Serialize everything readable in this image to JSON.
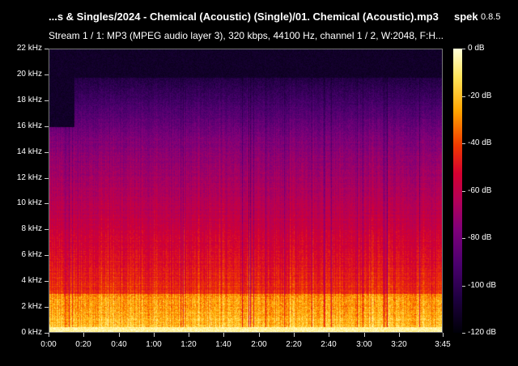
{
  "window": {
    "title": "...s & Singles/2024 - Chemical (Acoustic) (Single)/01. Chemical (Acoustic).mp3",
    "app_name": "spek",
    "app_version": "0.8.5",
    "stream_info": "Stream 1 / 1: MP3 (MPEG audio layer 3), 320 kbps, 44100 Hz, channel 1 / 2, W:2048, F:H..."
  },
  "chart_data": {
    "type": "heatmap",
    "title": "",
    "xlabel": "",
    "ylabel": "",
    "x_ticks": [
      "0:00",
      "0:20",
      "0:40",
      "1:00",
      "1:20",
      "1:40",
      "2:00",
      "2:20",
      "2:40",
      "3:00",
      "3:20",
      "3:45"
    ],
    "x_tick_seconds": [
      0,
      20,
      40,
      60,
      80,
      100,
      120,
      140,
      160,
      180,
      200,
      225
    ],
    "xlim_seconds": [
      0,
      225
    ],
    "y_ticks": [
      "0 kHz",
      "2 kHz",
      "4 kHz",
      "6 kHz",
      "8 kHz",
      "10 kHz",
      "12 kHz",
      "14 kHz",
      "16 kHz",
      "18 kHz",
      "20 kHz",
      "22 kHz"
    ],
    "y_tick_khz": [
      0,
      2,
      4,
      6,
      8,
      10,
      12,
      14,
      16,
      18,
      20,
      22
    ],
    "ylim_khz": [
      0,
      22
    ],
    "colorbar_ticks": [
      "0 dB",
      "-20 dB",
      "-40 dB",
      "-60 dB",
      "-80 dB",
      "-100 dB",
      "-120 dB"
    ],
    "colorbar_db": [
      0,
      -20,
      -40,
      -60,
      -80,
      -100,
      -120
    ],
    "colorbar_range_db": [
      -120,
      0
    ],
    "cutoff_khz": 19.8,
    "early_cutoff_khz": 16,
    "early_cutoff_end_seconds": 14,
    "colormap": [
      "#000008",
      "#1e0040",
      "#4a006e",
      "#7e007a",
      "#b2005a",
      "#d40030",
      "#f03a00",
      "#ffa400",
      "#ffe45a",
      "#ffffd8"
    ]
  }
}
